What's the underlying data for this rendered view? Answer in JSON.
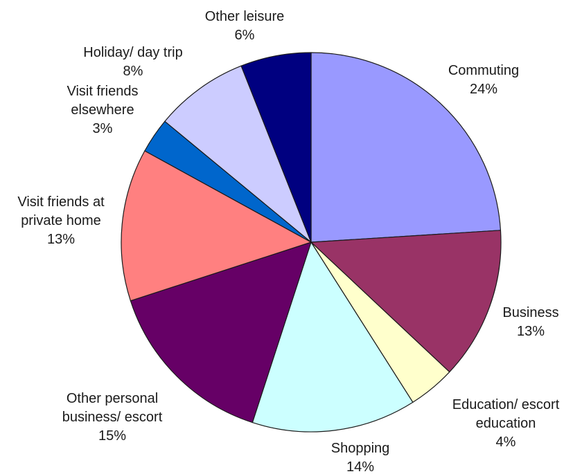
{
  "chart_data": {
    "type": "pie",
    "start_angle_deg": 0,
    "direction": "clockwise",
    "slices": [
      {
        "label": "Commuting",
        "value": 24,
        "value_label": "24%",
        "color": "#9999ff"
      },
      {
        "label": "Business",
        "value": 13,
        "value_label": "13%",
        "color": "#993366"
      },
      {
        "label": "Education/ escort education",
        "value": 4,
        "value_label": "4%",
        "color": "#ffffcc"
      },
      {
        "label": "Shopping",
        "value": 14,
        "value_label": "14%",
        "color": "#ccffff"
      },
      {
        "label": "Other personal business/ escort",
        "value": 15,
        "value_label": "15%",
        "color": "#660066"
      },
      {
        "label": "Visit friends at private home",
        "value": 13,
        "value_label": "13%",
        "color": "#ff8080"
      },
      {
        "label": "Visit friends elsewhere",
        "value": 3,
        "value_label": "3%",
        "color": "#0066cc"
      },
      {
        "label": "Holiday/ day trip",
        "value": 8,
        "value_label": "8%",
        "color": "#ccccff"
      },
      {
        "label": "Other leisure",
        "value": 6,
        "value_label": "6%",
        "color": "#000080"
      }
    ]
  }
}
